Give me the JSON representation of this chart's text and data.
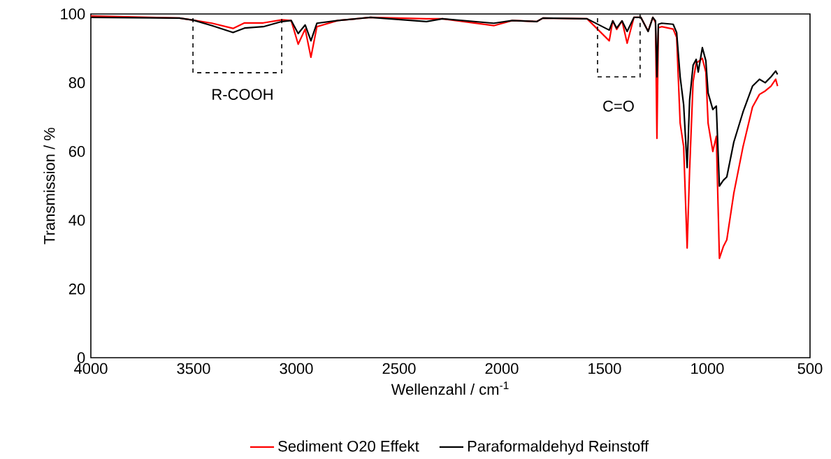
{
  "chart_data": {
    "type": "line",
    "xlabel": "Wellenzahl / cm$^{-1}$",
    "ylabel": "Transmission / %",
    "xlim": [
      4000,
      500
    ],
    "xticks": [
      4000,
      3500,
      3000,
      2500,
      2000,
      1500,
      1000,
      500
    ],
    "ylim": [
      0,
      100
    ],
    "yticks": [
      0,
      20,
      40,
      60,
      80,
      100
    ],
    "grid": false,
    "legend": "bottom",
    "marker": "none",
    "line_style": "solid",
    "annotations": [
      "R-COOH",
      "C=O"
    ],
    "series": [
      {
        "name": "Sediment O20 Effekt",
        "color": "#ff0000",
        "x": [
          4000,
          3569,
          3501,
          3410,
          3308,
          3252,
          3161,
          3070,
          3025,
          2991,
          2957,
          2929,
          2900,
          2798,
          2639,
          2367,
          2289,
          2039,
          1949,
          1829,
          1800,
          1585,
          1477,
          1460,
          1441,
          1415,
          1390,
          1357,
          1323,
          1288,
          1265,
          1252,
          1245,
          1238,
          1222,
          1166,
          1149,
          1132,
          1115,
          1098,
          1086,
          1069,
          1054,
          1044,
          1024,
          1007,
          996,
          973,
          956,
          941,
          922,
          905,
          871,
          826,
          780,
          746,
          718,
          690,
          667,
          658
        ],
        "values": [
          99.4,
          98.8,
          98.2,
          97.3,
          95.8,
          97.4,
          97.4,
          98.3,
          98.1,
          91.2,
          95.6,
          87.4,
          96.3,
          98.1,
          99.0,
          98.6,
          98.6,
          96.6,
          98.1,
          97.8,
          98.8,
          98.6,
          92.2,
          98.0,
          95.5,
          98.0,
          91.5,
          99.0,
          99.0,
          95.0,
          99.0,
          97.5,
          63.8,
          96.0,
          96.3,
          95.6,
          93.2,
          68.2,
          61.4,
          31.9,
          54.6,
          80.3,
          85.8,
          86.1,
          87.1,
          83.1,
          68.2,
          60.0,
          64.4,
          28.9,
          32.3,
          34.3,
          47.8,
          61.4,
          72.9,
          76.6,
          77.6,
          79.0,
          81.0,
          79.0
        ]
      },
      {
        "name": "Paraformaldehyd Reinstoff",
        "color": "#000000",
        "x": [
          4000,
          3569,
          3501,
          3410,
          3308,
          3252,
          3161,
          3070,
          3025,
          2991,
          2957,
          2929,
          2900,
          2798,
          2639,
          2367,
          2289,
          2039,
          1949,
          1829,
          1800,
          1585,
          1477,
          1460,
          1441,
          1415,
          1390,
          1357,
          1323,
          1288,
          1265,
          1252,
          1245,
          1238,
          1222,
          1166,
          1149,
          1132,
          1115,
          1098,
          1086,
          1069,
          1054,
          1044,
          1024,
          1007,
          996,
          973,
          956,
          941,
          922,
          905,
          871,
          826,
          780,
          746,
          718,
          690,
          667,
          658
        ],
        "values": [
          99.0,
          98.8,
          98.2,
          96.6,
          94.6,
          95.9,
          96.3,
          97.8,
          98.1,
          94.3,
          96.8,
          92.2,
          97.3,
          98.1,
          99.0,
          97.8,
          98.6,
          97.3,
          98.1,
          97.8,
          98.8,
          98.6,
          95.3,
          98.0,
          95.9,
          98.0,
          94.9,
          99.0,
          99.0,
          94.9,
          99.0,
          98.0,
          81.7,
          97.0,
          97.3,
          97.0,
          94.6,
          81.7,
          73.6,
          55.3,
          74.9,
          85.1,
          86.8,
          83.1,
          90.2,
          86.4,
          77.0,
          72.2,
          73.2,
          49.9,
          51.6,
          52.6,
          62.7,
          71.5,
          79.0,
          81.0,
          80.0,
          81.7,
          83.4,
          82.4
        ]
      }
    ]
  }
}
